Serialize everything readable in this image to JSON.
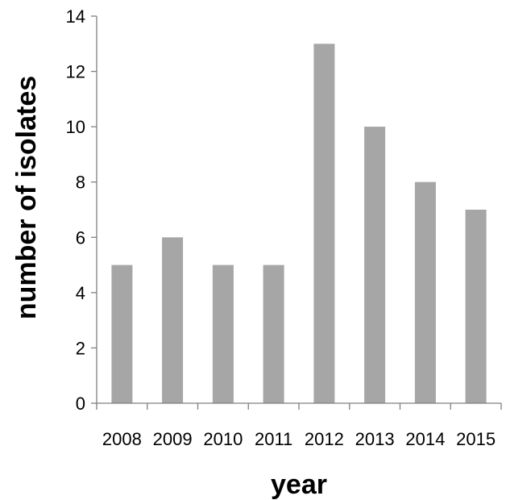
{
  "chart_data": {
    "type": "bar",
    "title": "",
    "xlabel": "year",
    "ylabel": "number of isolates",
    "categories": [
      "2008",
      "2009",
      "2010",
      "2011",
      "2012",
      "2013",
      "2014",
      "2015"
    ],
    "values": [
      5,
      6,
      5,
      5,
      13,
      10,
      8,
      7
    ],
    "ylim": [
      0,
      14
    ],
    "yticks": [
      "0",
      "2",
      "4",
      "6",
      "8",
      "10",
      "12",
      "14"
    ],
    "grid": false,
    "legend": "none",
    "colors": {
      "bar": "#a6a6a6",
      "axis": "#808080"
    }
  }
}
